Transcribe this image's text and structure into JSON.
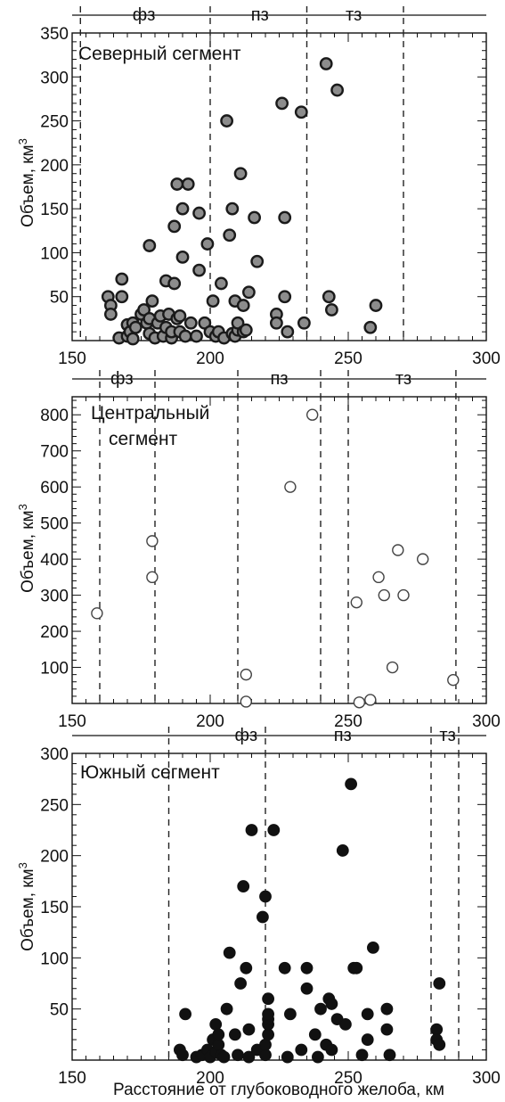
{
  "xlabel": "Расстояние от глубоководного желоба, км",
  "ylabel_main": "Объем, км",
  "ylabel_sup": "3",
  "chart_data": [
    {
      "type": "scatter",
      "title_lines": [
        "Северный сегмент"
      ],
      "xlim": [
        150,
        300
      ],
      "ylim": [
        0,
        350
      ],
      "x_ticks": [
        150,
        200,
        250,
        300
      ],
      "y_ticks": [
        50,
        100,
        150,
        200,
        250,
        300,
        350
      ],
      "zone_boundaries": [
        153,
        200,
        235,
        270
      ],
      "zones": [
        {
          "label": "фз",
          "x": 176
        },
        {
          "label": "пз",
          "x": 218
        },
        {
          "label": "тз",
          "x": 252
        }
      ],
      "marker": {
        "style": "gray-outlined",
        "fill": "#8c8c8c",
        "stroke": "#1a1a1a"
      },
      "points": [
        [
          163,
          50
        ],
        [
          164,
          40
        ],
        [
          164,
          30
        ],
        [
          167,
          3
        ],
        [
          168,
          70
        ],
        [
          168,
          50
        ],
        [
          170,
          18
        ],
        [
          170,
          5
        ],
        [
          171,
          10
        ],
        [
          172,
          2
        ],
        [
          172,
          20
        ],
        [
          173,
          15
        ],
        [
          175,
          30
        ],
        [
          176,
          35
        ],
        [
          177,
          20
        ],
        [
          178,
          25
        ],
        [
          178,
          8
        ],
        [
          178,
          108
        ],
        [
          179,
          45
        ],
        [
          180,
          3
        ],
        [
          181,
          20
        ],
        [
          182,
          28
        ],
        [
          183,
          5
        ],
        [
          184,
          15
        ],
        [
          184,
          68
        ],
        [
          185,
          30
        ],
        [
          186,
          3
        ],
        [
          186,
          10
        ],
        [
          187,
          65
        ],
        [
          187,
          130
        ],
        [
          188,
          178
        ],
        [
          188,
          25
        ],
        [
          189,
          10
        ],
        [
          189,
          28
        ],
        [
          190,
          150
        ],
        [
          190,
          95
        ],
        [
          191,
          5
        ],
        [
          192,
          178
        ],
        [
          193,
          20
        ],
        [
          195,
          5
        ],
        [
          196,
          80
        ],
        [
          196,
          145
        ],
        [
          198,
          20
        ],
        [
          199,
          110
        ],
        [
          200,
          10
        ],
        [
          201,
          45
        ],
        [
          202,
          5
        ],
        [
          203,
          10
        ],
        [
          204,
          65
        ],
        [
          205,
          3
        ],
        [
          206,
          250
        ],
        [
          207,
          120
        ],
        [
          208,
          150
        ],
        [
          208,
          8
        ],
        [
          209,
          5
        ],
        [
          209,
          45
        ],
        [
          210,
          12
        ],
        [
          210,
          20
        ],
        [
          211,
          190
        ],
        [
          212,
          10
        ],
        [
          212,
          40
        ],
        [
          213,
          12
        ],
        [
          214,
          55
        ],
        [
          216,
          140
        ],
        [
          217,
          90
        ],
        [
          224,
          30
        ],
        [
          224,
          20
        ],
        [
          226,
          270
        ],
        [
          227,
          50
        ],
        [
          227,
          140
        ],
        [
          228,
          10
        ],
        [
          233,
          260
        ],
        [
          234,
          20
        ],
        [
          242,
          315
        ],
        [
          243,
          50
        ],
        [
          244,
          35
        ],
        [
          246,
          285
        ],
        [
          258,
          15
        ],
        [
          260,
          40
        ]
      ]
    },
    {
      "type": "scatter",
      "title_lines": [
        "Центральный",
        "сегмент"
      ],
      "xlim": [
        150,
        300
      ],
      "ylim": [
        0,
        850
      ],
      "x_ticks": [
        150,
        200,
        250,
        300
      ],
      "y_ticks": [
        100,
        200,
        300,
        400,
        500,
        600,
        700,
        800
      ],
      "zone_boundaries": [
        160,
        180,
        210,
        240,
        250,
        289
      ],
      "zones": [
        {
          "label": "фз",
          "x": 168
        },
        {
          "label": "пз",
          "x": 225
        },
        {
          "label": "тз",
          "x": 270
        }
      ],
      "marker": {
        "style": "open",
        "fill": "#ffffff",
        "stroke": "#444444"
      },
      "points": [
        [
          159,
          250
        ],
        [
          179,
          450
        ],
        [
          179,
          350
        ],
        [
          213,
          80
        ],
        [
          213,
          5
        ],
        [
          229,
          600
        ],
        [
          237,
          800
        ],
        [
          253,
          280
        ],
        [
          254,
          3
        ],
        [
          258,
          10
        ],
        [
          261,
          350
        ],
        [
          263,
          300
        ],
        [
          266,
          100
        ],
        [
          268,
          425
        ],
        [
          270,
          300
        ],
        [
          277,
          400
        ],
        [
          288,
          65
        ]
      ]
    },
    {
      "type": "scatter",
      "title_lines": [
        "Южный сегмент"
      ],
      "xlim": [
        150,
        300
      ],
      "ylim": [
        0,
        300
      ],
      "x_ticks": [
        150,
        200,
        250,
        300
      ],
      "y_ticks": [
        50,
        100,
        150,
        200,
        250,
        300
      ],
      "zone_boundaries": [
        185,
        220,
        280,
        290
      ],
      "zones": [
        {
          "label": "фз",
          "x": 213
        },
        {
          "label": "пз",
          "x": 248
        },
        {
          "label": "тз",
          "x": 286
        }
      ],
      "marker": {
        "style": "filled",
        "fill": "#111111",
        "stroke": "#111111"
      },
      "points": [
        [
          189,
          10
        ],
        [
          190,
          5
        ],
        [
          191,
          45
        ],
        [
          195,
          3
        ],
        [
          197,
          5
        ],
        [
          199,
          10
        ],
        [
          200,
          3
        ],
        [
          201,
          20
        ],
        [
          202,
          35
        ],
        [
          202,
          8
        ],
        [
          203,
          15
        ],
        [
          203,
          25
        ],
        [
          204,
          5
        ],
        [
          205,
          3
        ],
        [
          206,
          50
        ],
        [
          207,
          105
        ],
        [
          209,
          25
        ],
        [
          210,
          5
        ],
        [
          211,
          75
        ],
        [
          212,
          170
        ],
        [
          213,
          90
        ],
        [
          214,
          3
        ],
        [
          214,
          30
        ],
        [
          215,
          225
        ],
        [
          217,
          10
        ],
        [
          219,
          140
        ],
        [
          220,
          160
        ],
        [
          220,
          5
        ],
        [
          220,
          15
        ],
        [
          221,
          25
        ],
        [
          221,
          35
        ],
        [
          221,
          40
        ],
        [
          221,
          45
        ],
        [
          221,
          60
        ],
        [
          223,
          225
        ],
        [
          227,
          90
        ],
        [
          228,
          3
        ],
        [
          229,
          45
        ],
        [
          233,
          10
        ],
        [
          235,
          90
        ],
        [
          235,
          70
        ],
        [
          238,
          25
        ],
        [
          239,
          3
        ],
        [
          240,
          50
        ],
        [
          242,
          15
        ],
        [
          243,
          60
        ],
        [
          244,
          10
        ],
        [
          244,
          55
        ],
        [
          246,
          40
        ],
        [
          248,
          205
        ],
        [
          249,
          35
        ],
        [
          251,
          270
        ],
        [
          252,
          90
        ],
        [
          253,
          90
        ],
        [
          255,
          5
        ],
        [
          257,
          45
        ],
        [
          257,
          20
        ],
        [
          259,
          110
        ],
        [
          264,
          50
        ],
        [
          264,
          30
        ],
        [
          265,
          5
        ],
        [
          282,
          30
        ],
        [
          282,
          20
        ],
        [
          283,
          75
        ],
        [
          283,
          15
        ]
      ]
    }
  ]
}
